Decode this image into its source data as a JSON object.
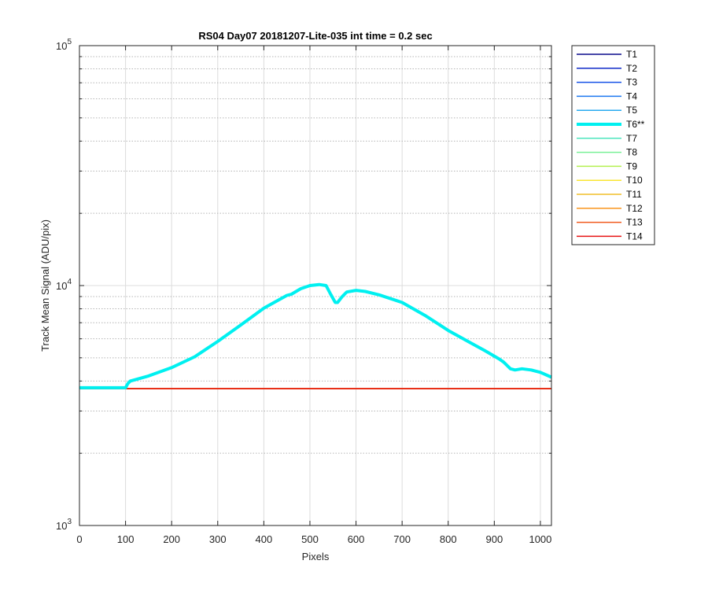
{
  "chart_data": {
    "type": "line",
    "title": "RS04 Day07 20181207-Lite-035 int time = 0.2 sec",
    "xlabel": "Pixels",
    "ylabel": "Track Mean Signal (ADU/pix)",
    "xlim": [
      0,
      1024
    ],
    "ylim": [
      1000,
      100000
    ],
    "yscale": "log",
    "grid": true,
    "legend_position": "outside-right",
    "x_ticks": [
      0,
      100,
      200,
      300,
      400,
      500,
      600,
      700,
      800,
      900,
      1000
    ],
    "x_tick_labels": [
      "0",
      "100",
      "200",
      "300",
      "400",
      "500",
      "600",
      "700",
      "800",
      "900",
      "1000"
    ],
    "y_ticks": [
      1000,
      10000,
      100000
    ],
    "y_tick_labels": [
      {
        "base": "10",
        "exp": "3"
      },
      {
        "base": "10",
        "exp": "4"
      },
      {
        "base": "10",
        "exp": "5"
      }
    ],
    "series": [
      {
        "name": "T1",
        "color": "#0a0a8c",
        "width": 1.5,
        "x": [
          0,
          1024
        ],
        "y": [
          3720,
          3720
        ]
      },
      {
        "name": "T2",
        "color": "#0f2ac8",
        "width": 1.5,
        "x": [
          0,
          1024
        ],
        "y": [
          3720,
          3720
        ]
      },
      {
        "name": "T3",
        "color": "#1450e6",
        "width": 1.5,
        "x": [
          0,
          1024
        ],
        "y": [
          3720,
          3720
        ]
      },
      {
        "name": "T4",
        "color": "#1e78f0",
        "width": 1.5,
        "x": [
          0,
          1024
        ],
        "y": [
          3720,
          3720
        ]
      },
      {
        "name": "T5",
        "color": "#28aaf0",
        "width": 1.5,
        "x": [
          0,
          1024
        ],
        "y": [
          3720,
          3720
        ]
      },
      {
        "name": "T6**",
        "color": "#00f0f0",
        "width": 4,
        "x": [
          0,
          100,
          105,
          110,
          150,
          200,
          250,
          300,
          350,
          400,
          450,
          460,
          480,
          500,
          520,
          535,
          545,
          555,
          560,
          570,
          580,
          600,
          620,
          650,
          700,
          750,
          800,
          850,
          880,
          910,
          920,
          935,
          945,
          960,
          980,
          1000,
          1024
        ],
        "y": [
          3750,
          3750,
          3900,
          4000,
          4200,
          4550,
          5050,
          5850,
          6850,
          8050,
          9100,
          9200,
          9700,
          10000,
          10100,
          10000,
          9200,
          8500,
          8500,
          9000,
          9400,
          9550,
          9450,
          9150,
          8500,
          7500,
          6500,
          5750,
          5350,
          4950,
          4800,
          4500,
          4450,
          4500,
          4450,
          4350,
          4150
        ]
      },
      {
        "name": "T7",
        "color": "#4de6be",
        "width": 1.5,
        "x": [
          0,
          1024
        ],
        "y": [
          3720,
          3720
        ]
      },
      {
        "name": "T8",
        "color": "#78f096",
        "width": 1.5,
        "x": [
          0,
          1024
        ],
        "y": [
          3720,
          3720
        ]
      },
      {
        "name": "T9",
        "color": "#b4f050",
        "width": 1.5,
        "x": [
          0,
          1024
        ],
        "y": [
          3720,
          3720
        ]
      },
      {
        "name": "T10",
        "color": "#fae632",
        "width": 1.5,
        "x": [
          0,
          1024
        ],
        "y": [
          3720,
          3720
        ]
      },
      {
        "name": "T11",
        "color": "#f0be28",
        "width": 1.5,
        "x": [
          0,
          1024
        ],
        "y": [
          3720,
          3720
        ]
      },
      {
        "name": "T12",
        "color": "#fa961e",
        "width": 1.5,
        "x": [
          0,
          1024
        ],
        "y": [
          3720,
          3720
        ]
      },
      {
        "name": "T13",
        "color": "#f05a1e",
        "width": 1.5,
        "x": [
          0,
          1024
        ],
        "y": [
          3720,
          3720
        ]
      },
      {
        "name": "T14",
        "color": "#e61414",
        "width": 1.5,
        "x": [
          0,
          1024
        ],
        "y": [
          3720,
          3720
        ]
      }
    ]
  }
}
